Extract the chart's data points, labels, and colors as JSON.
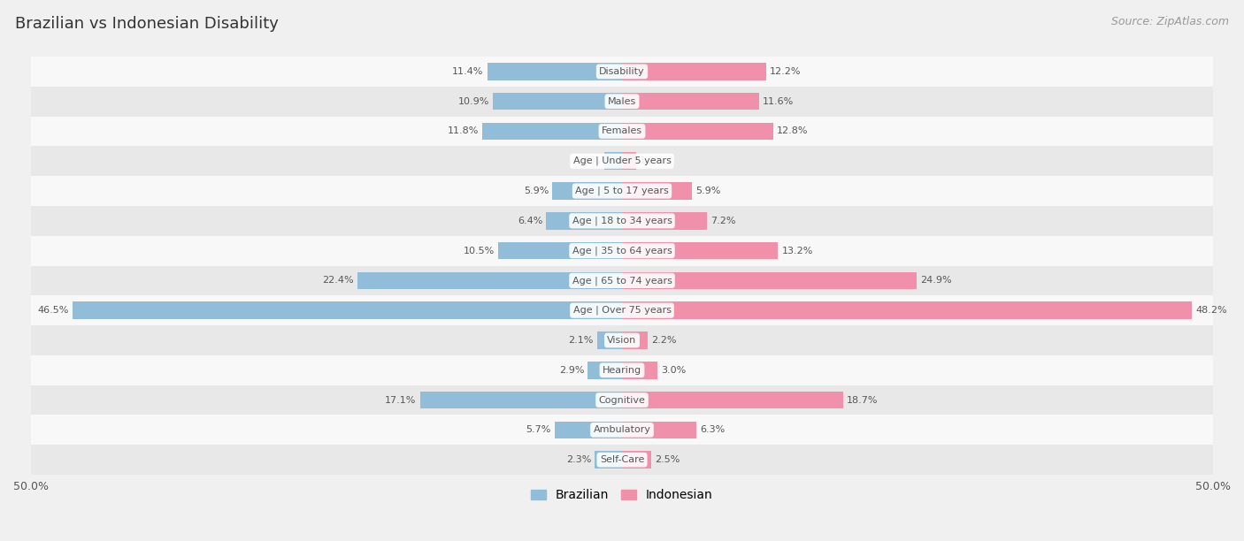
{
  "title": "Brazilian vs Indonesian Disability",
  "source": "Source: ZipAtlas.com",
  "categories": [
    "Disability",
    "Males",
    "Females",
    "Age | Under 5 years",
    "Age | 5 to 17 years",
    "Age | 18 to 34 years",
    "Age | 35 to 64 years",
    "Age | 65 to 74 years",
    "Age | Over 75 years",
    "Vision",
    "Hearing",
    "Cognitive",
    "Ambulatory",
    "Self-Care"
  ],
  "brazilian": [
    11.4,
    10.9,
    11.8,
    1.5,
    5.9,
    6.4,
    10.5,
    22.4,
    46.5,
    2.1,
    2.9,
    17.1,
    5.7,
    2.3
  ],
  "indonesian": [
    12.2,
    11.6,
    12.8,
    1.2,
    5.9,
    7.2,
    13.2,
    24.9,
    48.2,
    2.2,
    3.0,
    18.7,
    6.3,
    2.5
  ],
  "brazil_color": "#92bdd8",
  "indonesia_color": "#f090aa",
  "bar_height": 0.58,
  "bg_color": "#f0f0f0",
  "row_color_odd": "#e8e8e8",
  "row_color_even": "#f8f8f8",
  "max_val": 50.0,
  "text_color": "#555555",
  "title_color": "#333333",
  "source_color": "#999999"
}
